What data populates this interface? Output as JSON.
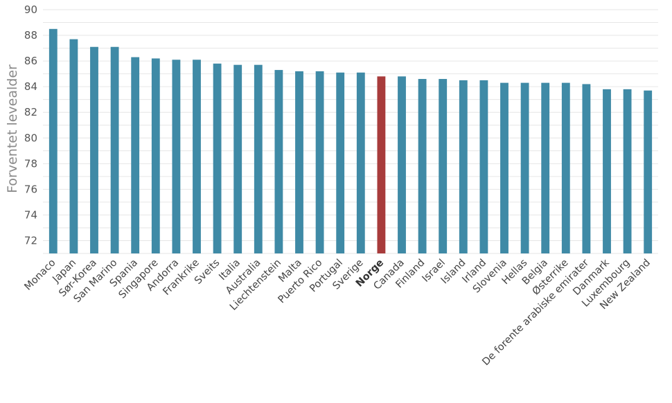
{
  "chart_data": {
    "type": "bar",
    "title": "",
    "xlabel": "",
    "ylabel": "Forventet levealder",
    "ylim": [
      71,
      90
    ],
    "yticks": [
      72,
      74,
      76,
      78,
      80,
      82,
      84,
      86,
      88,
      90
    ],
    "grid": true,
    "legend": "none",
    "bar_color": "#3f8aa6",
    "highlight_color": "#a83b3b",
    "highlight_category": "Norge",
    "categories": [
      "Monaco",
      "Japan",
      "Sør-Korea",
      "San Marino",
      "Spania",
      "Singapore",
      "Andorra",
      "Frankrike",
      "Sveits",
      "Italia",
      "Australia",
      "Liechtenstein",
      "Malta",
      "Puerto Rico",
      "Portugal",
      "Sverige",
      "Norge",
      "Canada",
      "Finland",
      "Israel",
      "Island",
      "Irland",
      "Slovenia",
      "Hellas",
      "Belgia",
      "Østerrike",
      "De forente arabiske emirater",
      "Danmark",
      "Luxembourg",
      "New Zealand"
    ],
    "values": [
      88.5,
      87.7,
      87.1,
      87.1,
      86.3,
      86.2,
      86.1,
      86.1,
      85.8,
      85.7,
      85.7,
      85.3,
      85.2,
      85.2,
      85.1,
      85.1,
      84.8,
      84.8,
      84.6,
      84.6,
      84.5,
      84.5,
      84.3,
      84.3,
      84.3,
      84.3,
      84.2,
      83.8,
      83.8,
      83.7
    ]
  }
}
